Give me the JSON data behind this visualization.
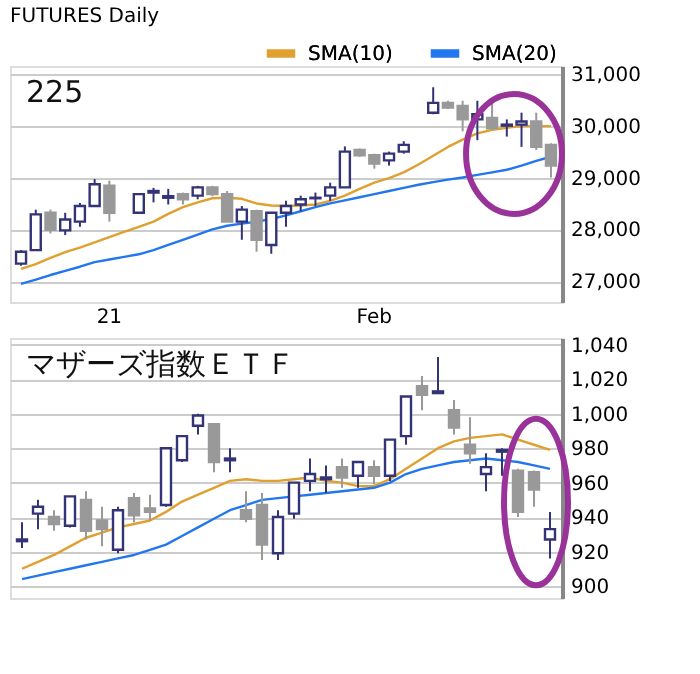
{
  "chart_data": [
    {
      "type": "candlestick",
      "title": "FUTURES Daily",
      "subtitle": "225",
      "categories": [
        null,
        null,
        null,
        null,
        null,
        null,
        "21",
        null,
        null,
        null,
        null,
        null,
        null,
        null,
        null,
        null,
        null,
        null,
        null,
        null,
        null,
        null,
        null,
        null,
        "Feb",
        null,
        null,
        null,
        null,
        null,
        null,
        null,
        null,
        null,
        null,
        null,
        null
      ],
      "ohlc": [
        [
          27340,
          27600,
          27300,
          27570
        ],
        [
          27600,
          28380,
          27600,
          28290
        ],
        [
          28320,
          28380,
          27920,
          27990
        ],
        [
          27980,
          28320,
          27890,
          28190
        ],
        [
          28150,
          28510,
          28050,
          28450
        ],
        [
          28450,
          28970,
          28450,
          28870
        ],
        [
          28840,
          28940,
          28150,
          28320
        ],
        null,
        [
          28320,
          28700,
          28320,
          28680
        ],
        [
          28710,
          28800,
          28520,
          28740
        ],
        [
          28610,
          28780,
          28480,
          28640
        ],
        [
          28680,
          28710,
          28480,
          28580
        ],
        [
          28650,
          28840,
          28580,
          28810
        ],
        [
          28810,
          28840,
          28640,
          28680
        ],
        [
          28680,
          28740,
          28150,
          28150
        ],
        [
          28150,
          28450,
          27800,
          28380
        ],
        [
          28350,
          28380,
          27570,
          27800
        ],
        [
          27700,
          28320,
          27530,
          28320
        ],
        [
          28320,
          28550,
          28050,
          28450
        ],
        [
          28480,
          28650,
          28350,
          28580
        ],
        [
          28600,
          28710,
          28450,
          28610
        ],
        [
          28650,
          28900,
          28550,
          28810
        ],
        [
          28810,
          29600,
          28810,
          29500
        ],
        [
          29530,
          29560,
          29400,
          29430
        ],
        [
          29430,
          29460,
          29170,
          29270
        ],
        [
          29330,
          29500,
          29230,
          29460
        ],
        [
          29500,
          29700,
          29460,
          29630
        ],
        null,
        [
          30250,
          30740,
          30220,
          30440
        ],
        [
          30440,
          30480,
          30320,
          30350
        ],
        [
          30380,
          30480,
          29890,
          30120
        ],
        [
          30120,
          30480,
          29720,
          30220
        ],
        [
          30150,
          30480,
          29950,
          29950
        ],
        [
          30000,
          30120,
          29790,
          30020
        ],
        [
          30020,
          30250,
          29590,
          30080
        ],
        [
          30080,
          30250,
          29530,
          29590
        ],
        [
          29630,
          29660,
          29000,
          29230
        ]
      ],
      "series": [
        {
          "name": "SMA(10)",
          "type": "line",
          "color": "#e0a030",
          "values": [
            27240,
            27330,
            27450,
            27560,
            27650,
            27750,
            27850,
            27950,
            28050,
            28150,
            28300,
            28430,
            28520,
            28600,
            28610,
            28590,
            28500,
            28460,
            28450,
            28460,
            28480,
            28550,
            28650,
            28780,
            28900,
            28990,
            29100,
            29250,
            29420,
            29590,
            29730,
            29850,
            29920,
            29960,
            29990,
            29990,
            29990
          ]
        },
        {
          "name": "SMA(20)",
          "type": "line",
          "color": "#2277ee",
          "values": [
            26950,
            27030,
            27120,
            27200,
            27280,
            27370,
            27420,
            27470,
            27520,
            27600,
            27700,
            27800,
            27900,
            28000,
            28070,
            28110,
            28150,
            28200,
            28270,
            28350,
            28430,
            28500,
            28560,
            28620,
            28680,
            28740,
            28800,
            28860,
            28910,
            28960,
            29000,
            29050,
            29100,
            29150,
            29230,
            29320,
            29400
          ]
        }
      ],
      "ylim": [
        26600,
        31150
      ],
      "yticks": [
        {
          "value": 27000,
          "label": "27,000"
        },
        {
          "value": 28000,
          "label": "28,000"
        },
        {
          "value": 29000,
          "label": "29,000"
        },
        {
          "value": 30000,
          "label": "30,000"
        },
        {
          "value": 31000,
          "label": "31,000"
        }
      ],
      "grid": "y",
      "legend": "top"
    },
    {
      "type": "candlestick",
      "title": "マザーズ指数ＥＴＦ",
      "categories": [
        null,
        null,
        null,
        null,
        null,
        null,
        null,
        null,
        null,
        null,
        null,
        null,
        null,
        null,
        null,
        null,
        null,
        null,
        null,
        null,
        null,
        null,
        null,
        null,
        null,
        null,
        null,
        null,
        null,
        null,
        null,
        null,
        null,
        null
      ],
      "ohlc": [
        [
          926,
          937,
          922,
          927
        ],
        [
          942,
          950,
          933,
          946
        ],
        [
          940,
          944,
          932,
          936
        ],
        [
          935,
          952,
          934,
          952
        ],
        [
          950,
          955,
          927,
          932
        ],
        [
          938,
          946,
          923,
          933
        ],
        [
          921,
          946,
          919,
          944
        ],
        [
          951,
          954,
          937,
          941
        ],
        [
          945,
          953,
          938,
          943
        ],
        [
          947,
          980,
          946,
          980
        ],
        [
          973,
          987,
          972,
          987
        ],
        [
          993,
          1000,
          988,
          999
        ],
        [
          994,
          994,
          966,
          972
        ],
        [
          973,
          980,
          966,
          974
        ],
        [
          944,
          955,
          937,
          939
        ],
        [
          947,
          954,
          915,
          924
        ],
        [
          919,
          944,
          915,
          940
        ],
        [
          942,
          960,
          939,
          960
        ],
        [
          961,
          974,
          955,
          965
        ],
        [
          962,
          970,
          954,
          963
        ],
        [
          969,
          974,
          957,
          963
        ],
        [
          964,
          972,
          957,
          972
        ],
        [
          969,
          973,
          959,
          964
        ],
        [
          964,
          985,
          961,
          985
        ],
        [
          987,
          1010,
          982,
          1010
        ],
        [
          1016,
          1022,
          1002,
          1011
        ],
        [
          1012,
          1033,
          1012,
          1013
        ],
        [
          1002,
          1008,
          988,
          992
        ],
        [
          982,
          998,
          971,
          977
        ],
        [
          965,
          977,
          955,
          969
        ],
        [
          978,
          980,
          964,
          979
        ],
        [
          967,
          968,
          940,
          943
        ],
        [
          966,
          967,
          946,
          956
        ],
        [
          927,
          943,
          916,
          933
        ]
      ],
      "series": [
        {
          "type": "line",
          "color": "#e0a030",
          "values": [
            910,
            914,
            918,
            923,
            928,
            931,
            934,
            936,
            938,
            943,
            949,
            953,
            957,
            961,
            962,
            961,
            961,
            962,
            963,
            961,
            960,
            958,
            958,
            962,
            968,
            974,
            980,
            984,
            986,
            987,
            988,
            985,
            982,
            979
          ]
        },
        {
          "type": "line",
          "color": "#2277ee",
          "values": [
            904,
            906,
            908,
            910,
            912,
            914,
            916,
            918,
            921,
            924,
            929,
            934,
            939,
            944,
            947,
            950,
            951,
            952,
            953,
            954,
            955,
            956,
            957,
            960,
            965,
            968,
            970,
            972,
            973,
            974,
            973,
            972,
            970,
            968
          ]
        }
      ],
      "ylim": [
        893,
        1044
      ],
      "yticks": [
        900,
        920,
        940,
        960,
        980,
        {
          "value": 1000,
          "label": "1,000"
        },
        {
          "value": 1020,
          "label": "1,020"
        },
        {
          "value": 1040,
          "label": "1,040"
        }
      ],
      "grid": "y",
      "tick_labels": "y"
    }
  ]
}
